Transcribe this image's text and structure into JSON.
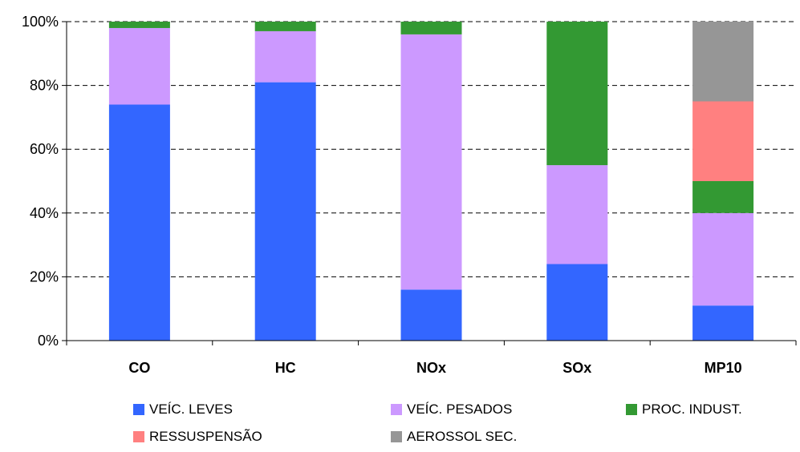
{
  "chart_data": {
    "type": "bar",
    "stacked": true,
    "percent": true,
    "categories": [
      "CO",
      "HC",
      "NOx",
      "SOx",
      "MP10"
    ],
    "series": [
      {
        "name": "VEÍC. LEVES",
        "color": "#3366FF",
        "values": [
          74,
          81,
          16,
          24,
          11
        ]
      },
      {
        "name": "VEÍC. PESADOS",
        "color": "#CC99FF",
        "values": [
          24,
          16,
          80,
          31,
          29
        ]
      },
      {
        "name": "PROC. INDUST.",
        "color": "#339933",
        "values": [
          2,
          3,
          4,
          45,
          10
        ]
      },
      {
        "name": "RESSUSPENSÃO",
        "color": "#FF8080",
        "values": [
          0,
          0,
          0,
          0,
          25
        ]
      },
      {
        "name": "AEROSSOL SEC.",
        "color": "#969696",
        "values": [
          0,
          0,
          0,
          0,
          25
        ]
      }
    ],
    "y_ticks": [
      "0%",
      "20%",
      "40%",
      "60%",
      "80%",
      "100%"
    ],
    "ylim": [
      0,
      100
    ],
    "grid": "dashed horizontal",
    "legend_position": "bottom"
  }
}
